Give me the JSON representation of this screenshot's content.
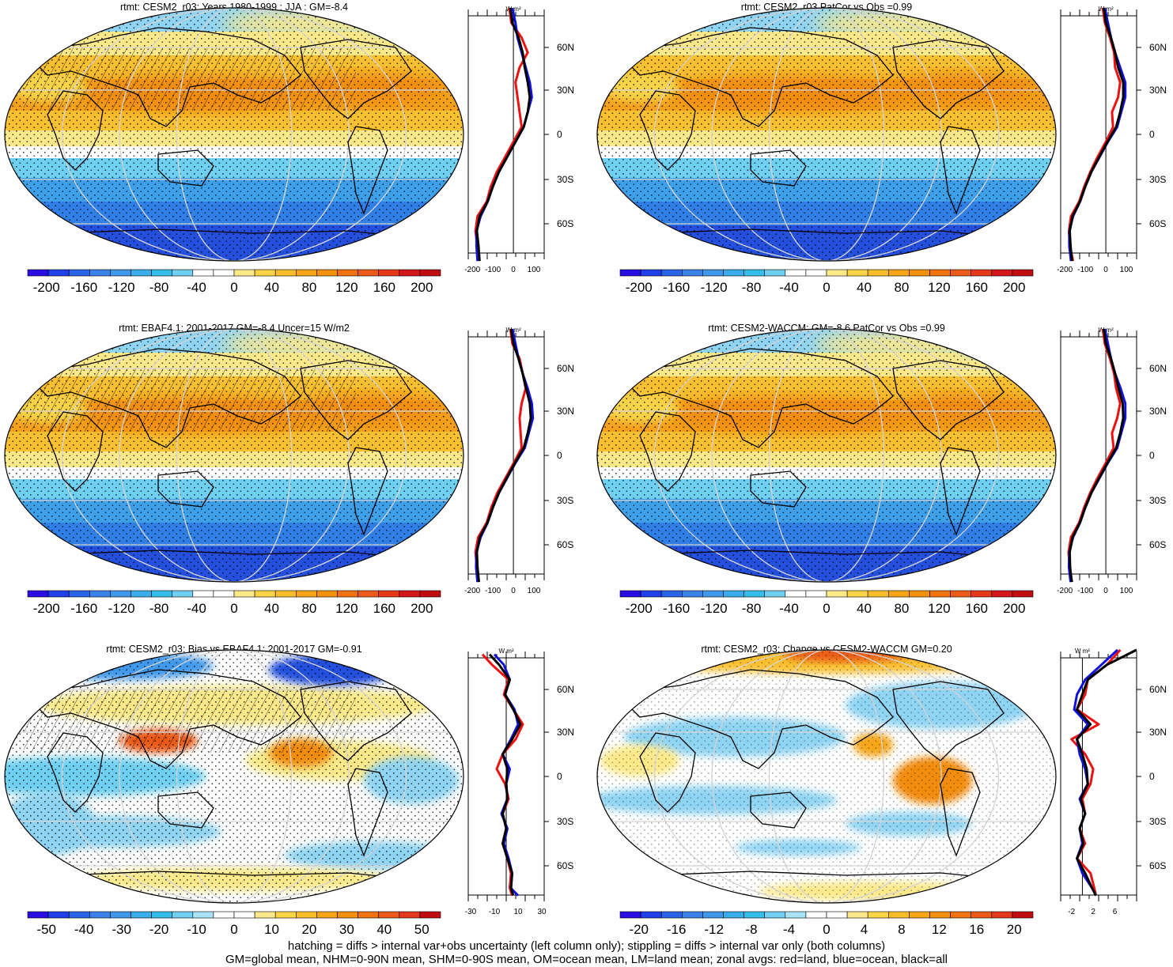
{
  "footer": {
    "line1": "hatching = diffs > internal var+obs uncertainty (left column only); stippling = diffs > internal var only (both columns)",
    "line2": "GM=global mean, NHM=0-90N mean, SHM=0-90S mean, OM=ocean mean, LM=land mean; zonal avgs: red=land, blue=ocean, black=all"
  },
  "colors": {
    "land": "#ee1111",
    "ocean": "#1111dd",
    "all": "#000000",
    "scale_abs": [
      "#2a0de0",
      "#1f3fe8",
      "#2b63e6",
      "#3a82e8",
      "#3f98ea",
      "#39ace9",
      "#35bdeb",
      "#6fd0f2",
      "#ffffff",
      "#ffffff",
      "#fde98a",
      "#fbd448",
      "#f9bd2a",
      "#f6a519",
      "#f3900e",
      "#ef7411",
      "#ea5a18",
      "#e3391a",
      "#d5161b",
      "#c10d10"
    ],
    "scale_diff": [
      "#2a0de0",
      "#1f3fe8",
      "#2b63e6",
      "#3a82e8",
      "#3f98ea",
      "#39ace9",
      "#35bdeb",
      "#6fd0f2",
      "#a9e3f8",
      "#ffffff",
      "#ffffff",
      "#fde98a",
      "#fbd448",
      "#f9bd2a",
      "#f6a519",
      "#f3900e",
      "#ef7411",
      "#ea5a18",
      "#e3391a",
      "#c10d10"
    ]
  },
  "chart_data": [
    {
      "type": "heatmap",
      "title": "rtmt: CESM2_r03: Years 1980-1999 : JJA : GM=-8.4",
      "colorbar": {
        "range": [
          -220,
          220
        ],
        "ticks": [
          -200,
          -160,
          -120,
          -80,
          -40,
          0,
          40,
          80,
          120,
          160,
          200
        ]
      },
      "zonal_profile": {
        "unit": "W m²",
        "xlim": [
          -220,
          150
        ],
        "xticks": [
          -200,
          -100,
          0,
          100
        ],
        "lat_ticks": [
          "60N",
          "30N",
          "0",
          "30S",
          "60S"
        ],
        "lat": [
          -85,
          -75,
          -65,
          -55,
          -45,
          -35,
          -25,
          -15,
          -5,
          5,
          15,
          25,
          35,
          45,
          55,
          65,
          75,
          85
        ],
        "series": [
          {
            "name": "land",
            "values": [
              -170,
              -175,
              -185,
              -175,
              -130,
              -110,
              -80,
              -40,
              0,
              40,
              30,
              20,
              10,
              30,
              70,
              40,
              -10,
              -20
            ]
          },
          {
            "name": "ocean",
            "values": [
              -175,
              -180,
              -180,
              -160,
              -125,
              -100,
              -70,
              -30,
              10,
              50,
              70,
              90,
              80,
              60,
              40,
              20,
              10,
              -5
            ]
          },
          {
            "name": "all",
            "values": [
              -165,
              -170,
              -178,
              -165,
              -125,
              -100,
              -70,
              -30,
              10,
              50,
              70,
              80,
              70,
              55,
              45,
              25,
              -5,
              -15
            ]
          }
        ]
      }
    },
    {
      "type": "heatmap",
      "title": "rtmt: CESM2_r03 PatCor vs Obs =0.99",
      "colorbar": {
        "range": [
          -220,
          220
        ],
        "ticks": [
          -200,
          -160,
          -120,
          -80,
          -40,
          0,
          40,
          80,
          120,
          160,
          200
        ]
      },
      "zonal_profile": {
        "unit": "W m²",
        "xlim": [
          -220,
          150
        ],
        "xticks": [
          -200,
          -100,
          0,
          100
        ],
        "lat_ticks": [
          "60N",
          "30N",
          "0",
          "30S",
          "60S"
        ],
        "lat": [
          -85,
          -75,
          -65,
          -55,
          -45,
          -35,
          -25,
          -15,
          -5,
          5,
          15,
          25,
          35,
          45,
          55,
          65,
          75,
          85
        ],
        "series": [
          {
            "name": "land",
            "values": [
              -160,
              -175,
              -180,
              -170,
              -130,
              -105,
              -75,
              -40,
              0,
              35,
              30,
              60,
              70,
              45,
              40,
              20,
              -5,
              -15
            ]
          },
          {
            "name": "ocean",
            "values": [
              -170,
              -178,
              -178,
              -160,
              -125,
              -100,
              -70,
              -30,
              10,
              55,
              75,
              95,
              95,
              70,
              45,
              25,
              10,
              -5
            ]
          },
          {
            "name": "all",
            "values": [
              -165,
              -172,
              -176,
              -162,
              -126,
              -100,
              -70,
              -32,
              8,
              50,
              70,
              85,
              85,
              60,
              45,
              25,
              0,
              -10
            ]
          }
        ]
      }
    },
    {
      "type": "heatmap",
      "title": "rtmt: EBAF4.1: 2001-2017 GM=-8.4 Uncer=15 W/m2",
      "colorbar": {
        "range": [
          -220,
          220
        ],
        "ticks": [
          -200,
          -160,
          -120,
          -80,
          -40,
          0,
          40,
          80,
          120,
          160,
          200
        ]
      },
      "zonal_profile": {
        "unit": "W m²",
        "xlim": [
          -220,
          150
        ],
        "xticks": [
          -200,
          -100,
          0,
          100
        ],
        "lat_ticks": [
          "60N",
          "30N",
          "0",
          "30S",
          "60S"
        ],
        "lat": [
          -85,
          -75,
          -65,
          -55,
          -45,
          -35,
          -25,
          -15,
          -5,
          5,
          15,
          25,
          35,
          45,
          55,
          65,
          75,
          85
        ],
        "series": [
          {
            "name": "land",
            "values": [
              -170,
              -178,
              -185,
              -172,
              -130,
              -108,
              -78,
              -38,
              2,
              40,
              35,
              30,
              40,
              60,
              45,
              30,
              -5,
              -15
            ]
          },
          {
            "name": "ocean",
            "values": [
              -175,
              -182,
              -180,
              -160,
              -125,
              -100,
              -70,
              -30,
              10,
              55,
              75,
              95,
              90,
              70,
              45,
              25,
              10,
              -5
            ]
          },
          {
            "name": "all",
            "values": [
              -168,
              -175,
              -178,
              -164,
              -126,
              -100,
              -70,
              -32,
              8,
              50,
              70,
              85,
              80,
              62,
              45,
              25,
              0,
              -12
            ]
          }
        ]
      }
    },
    {
      "type": "heatmap",
      "title": "rtmt: CESM2-WACCM: GM=-8.6 PatCor vs Obs =0.99",
      "colorbar": {
        "range": [
          -220,
          220
        ],
        "ticks": [
          -200,
          -160,
          -120,
          -80,
          -40,
          0,
          40,
          80,
          120,
          160,
          200
        ]
      },
      "zonal_profile": {
        "unit": "W m²",
        "xlim": [
          -220,
          150
        ],
        "xticks": [
          -200,
          -100,
          0,
          100
        ],
        "lat_ticks": [
          "60N",
          "30N",
          "0",
          "30S",
          "60S"
        ],
        "lat": [
          -85,
          -75,
          -65,
          -55,
          -45,
          -35,
          -25,
          -15,
          -5,
          5,
          15,
          25,
          35,
          45,
          55,
          65,
          75,
          85
        ],
        "series": [
          {
            "name": "land",
            "values": [
              -165,
              -176,
              -182,
              -170,
              -130,
              -106,
              -76,
              -40,
              0,
              38,
              30,
              55,
              70,
              50,
              40,
              20,
              -5,
              -15
            ]
          },
          {
            "name": "ocean",
            "values": [
              -172,
              -180,
              -178,
              -160,
              -125,
              -100,
              -70,
              -30,
              10,
              55,
              75,
              95,
              95,
              72,
              45,
              25,
              10,
              -5
            ]
          },
          {
            "name": "all",
            "values": [
              -166,
              -174,
              -176,
              -162,
              -126,
              -100,
              -70,
              -32,
              8,
              50,
              70,
              85,
              82,
              62,
              45,
              25,
              0,
              -10
            ]
          }
        ]
      }
    },
    {
      "type": "heatmap",
      "title": "rtmt: CESM2_r03: Bias vs EBAF4.1: 2001-2017 GM=-0.91",
      "colorbar": {
        "range": [
          -55,
          55
        ],
        "ticks": [
          -50,
          -40,
          -30,
          -20,
          -10,
          0,
          10,
          20,
          30,
          40,
          50
        ]
      },
      "zonal_profile": {
        "unit": "W m²",
        "xlim": [
          -32,
          32
        ],
        "xticks": [
          -30,
          -10,
          10,
          30
        ],
        "lat_ticks": [
          "60N",
          "30N",
          "0",
          "30S",
          "60S"
        ],
        "lat": [
          -80,
          -75,
          -65,
          -55,
          -45,
          -35,
          -25,
          -15,
          -5,
          5,
          15,
          25,
          35,
          45,
          55,
          65,
          75,
          82
        ],
        "series": [
          {
            "name": "land",
            "values": [
              5,
              3,
              4,
              1,
              -3,
              0,
              -3,
              2,
              -1,
              -8,
              -3,
              8,
              14,
              6,
              -2,
              2,
              -12,
              -20
            ]
          },
          {
            "name": "ocean",
            "values": [
              10,
              4,
              5,
              2,
              -2,
              1,
              -4,
              1,
              0,
              3,
              -3,
              4,
              10,
              7,
              -1,
              3,
              -2,
              -10
            ]
          },
          {
            "name": "all",
            "values": [
              6,
              4,
              5,
              1,
              -3,
              0,
              -3,
              1,
              0,
              1,
              -3,
              5,
              12,
              6,
              -1,
              3,
              -6,
              -14
            ]
          }
        ]
      }
    },
    {
      "type": "heatmap",
      "title": "rtmt: CESM2_r03: Change vs CESM2-WACCM GM=0.20",
      "colorbar": {
        "range": [
          -22,
          22
        ],
        "ticks": [
          -20,
          -16,
          -12,
          -8,
          -4,
          0,
          4,
          8,
          12,
          16,
          20
        ]
      },
      "zonal_profile": {
        "unit": "W m²",
        "xlim": [
          -4,
          10
        ],
        "xticks": [
          -2.0,
          2.0,
          6.0
        ],
        "lat_ticks": [
          "60N",
          "30N",
          "0",
          "30S",
          "60S"
        ],
        "lat": [
          -80,
          -75,
          -65,
          -55,
          -45,
          -35,
          -25,
          -15,
          -5,
          5,
          15,
          25,
          35,
          45,
          55,
          65,
          75,
          85
        ],
        "series": [
          {
            "name": "land",
            "values": [
              2.5,
              2.2,
              1.5,
              -1.0,
              0.5,
              -0.5,
              0.5,
              0.0,
              1.5,
              2.0,
              0.5,
              -2.0,
              3.0,
              -1.0,
              0.5,
              1.0,
              4.5,
              7.0
            ]
          },
          {
            "name": "ocean",
            "values": [
              2.5,
              1.8,
              0.0,
              -1.0,
              0.0,
              -0.5,
              0.5,
              -0.5,
              1.0,
              0.5,
              -0.5,
              -1.0,
              1.0,
              -1.5,
              -1.0,
              0.5,
              3.5,
              6.5
            ]
          },
          {
            "name": "all",
            "values": [
              2.5,
              1.8,
              0.5,
              -1.0,
              0.2,
              -0.5,
              0.5,
              -0.3,
              1.0,
              0.8,
              0.0,
              -1.0,
              1.5,
              -1.0,
              0.0,
              1.0,
              4.5,
              10.0
            ]
          }
        ]
      }
    }
  ]
}
